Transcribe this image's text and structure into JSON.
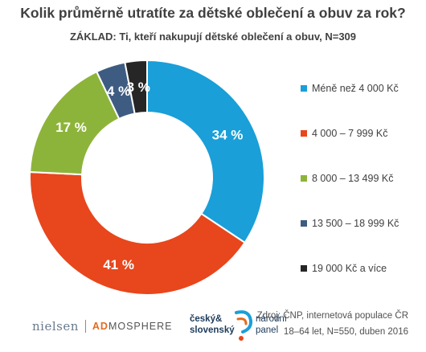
{
  "title": "Kolik průměrně utratíte za dětské oblečení a obuv za rok?",
  "subtitle": "ZÁKLAD: Ti, kteří nakupují dětské oblečení a obuv, N=309",
  "chart_data": {
    "type": "pie",
    "donut": true,
    "categories": [
      "Méně než 4 000 Kč",
      "4 000 – 7 999 Kč",
      "8 000 – 13 499 Kč",
      "13 500 – 18 999 Kč",
      "19 000 Kč a více"
    ],
    "values": [
      34,
      41,
      17,
      4,
      3
    ],
    "data_labels": [
      "34 %",
      "41 %",
      "17 %",
      "4 %",
      "3 %"
    ],
    "colors": [
      "#1a9fd8",
      "#e8461c",
      "#8db43a",
      "#3e5c82",
      "#262626"
    ],
    "legend_position": "right"
  },
  "footer": {
    "logo_nielsen": "nielsen",
    "logo_admosphere_a": "AD",
    "logo_admosphere_b": "MOSPHERE",
    "panel_logo_line1": "český&",
    "panel_logo_line2": "slovenský",
    "panel_logo_line3": "národní",
    "panel_logo_line4": "panel",
    "source_line1": "Zdroj: ČNP, internetová populace ČR",
    "source_line2": "18–64 let, N=550, duben 2016"
  }
}
